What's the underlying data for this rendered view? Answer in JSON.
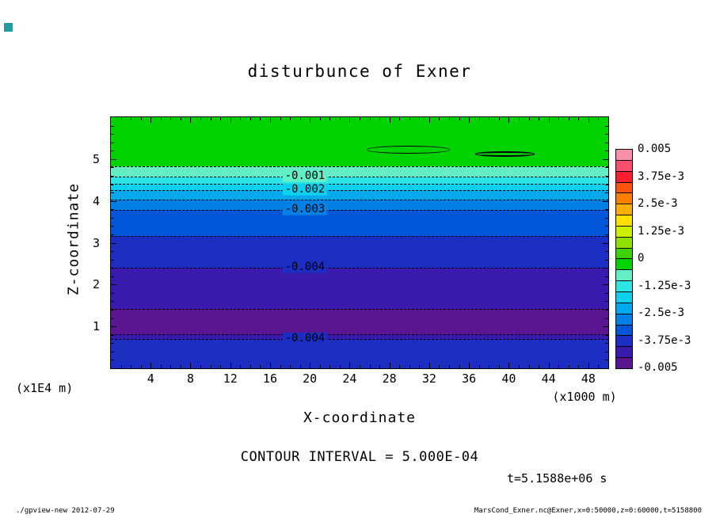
{
  "window": {
    "corner_marker_color": "#1f9ea0"
  },
  "title": "disturbunce of Exner",
  "axes": {
    "x_label": "X-coordinate",
    "x_unit_label": "(x1000 m)",
    "y_label": "Z-coordinate",
    "y_unit_label": "(x1E4 m)",
    "x_tick_labels": [
      4,
      8,
      12,
      16,
      20,
      24,
      28,
      32,
      36,
      40,
      44,
      48
    ],
    "y_tick_labels": [
      1,
      2,
      3,
      4,
      5
    ]
  },
  "colorbar": {
    "labels": [
      "0.005",
      "3.75e-3",
      "2.5e-3",
      "1.25e-3",
      "0",
      "-1.25e-3",
      "-2.5e-3",
      "-3.75e-3",
      "-0.005"
    ],
    "cell_colors_top_to_bottom": [
      "#f78fa7",
      "#f74f6f",
      "#ff1f2f",
      "#ff5410",
      "#ff7f00",
      "#ffaf00",
      "#ffdf00",
      "#cfef00",
      "#8fdf00",
      "#3fd200",
      "#00d200",
      "#63eec6",
      "#2ce4e4",
      "#0cd0ee",
      "#00a8ee",
      "#0080e4",
      "#0056d6",
      "#1c2ec2",
      "#3a1aac",
      "#5c1590"
    ]
  },
  "annotations": {
    "contour_interval": "CONTOUR INTERVAL = 5.000E-04",
    "time_label": "t=5.1588e+06 s"
  },
  "footer": {
    "left": "./gpview-new  2012-07-29",
    "right": "MarsCond_Exner.nc@Exner,x=0:50000,z=0:60000,t=5158800"
  },
  "chart_data": {
    "type": "heatmap",
    "variant": "filled_contour",
    "title": "disturbunce of Exner",
    "xlabel": "X-coordinate",
    "xunit": "x1000 m",
    "ylabel": "Z-coordinate",
    "yunit": "x1E4 m",
    "xlim": [
      0,
      50
    ],
    "ylim": [
      0,
      6
    ],
    "contour_interval": 0.0005,
    "value_range": [
      -0.005,
      0.0005
    ],
    "colorbar_levels": [
      0.005,
      0.00375,
      0.0025,
      0.00125,
      0,
      -0.00125,
      -0.0025,
      -0.00375,
      -0.005
    ],
    "bands": [
      {
        "z_top": 6.0,
        "z_bottom": 4.83,
        "value_min": -0.0005,
        "value_max": 0.0,
        "color": "#00d200"
      },
      {
        "z_top": 4.83,
        "z_bottom": 4.58,
        "value_min": -0.001,
        "value_max": -0.0005,
        "color": "#63eec6"
      },
      {
        "z_top": 4.58,
        "z_bottom": 4.41,
        "value_min": -0.0015,
        "value_max": -0.001,
        "color": "#2ce4e4"
      },
      {
        "z_top": 4.41,
        "z_bottom": 4.26,
        "value_min": -0.002,
        "value_max": -0.0015,
        "color": "#0cd0ee"
      },
      {
        "z_top": 4.26,
        "z_bottom": 4.03,
        "value_min": -0.0025,
        "value_max": -0.002,
        "color": "#00a8ee"
      },
      {
        "z_top": 4.03,
        "z_bottom": 3.79,
        "value_min": -0.003,
        "value_max": -0.0025,
        "color": "#0080e4"
      },
      {
        "z_top": 3.79,
        "z_bottom": 3.16,
        "value_min": -0.0035,
        "value_max": -0.003,
        "color": "#0056d6"
      },
      {
        "z_top": 3.16,
        "z_bottom": 2.4,
        "value_min": -0.004,
        "value_max": -0.0035,
        "color": "#1c2ec2"
      },
      {
        "z_top": 2.4,
        "z_bottom": 1.42,
        "value_min": -0.0045,
        "value_max": -0.004,
        "color": "#3a1aac"
      },
      {
        "z_top": 1.42,
        "z_bottom": 0.82,
        "value_min": -0.005,
        "value_max": -0.0045,
        "color": "#5c1590"
      },
      {
        "z_top": 0.82,
        "z_bottom": 0.7,
        "value_min": -0.0045,
        "value_max": -0.004,
        "color": "#3a1aac"
      },
      {
        "z_top": 0.7,
        "z_bottom": 0.0,
        "value_min": -0.004,
        "value_max": -0.0035,
        "color": "#1c2ec2"
      }
    ],
    "contours": [
      {
        "level": -0.0005,
        "z": 4.83,
        "label": ""
      },
      {
        "level": -0.001,
        "z": 4.58,
        "label": "-0.001",
        "label_bg": "#63eec6"
      },
      {
        "level": -0.0015,
        "z": 4.41,
        "label": ""
      },
      {
        "level": -0.002,
        "z": 4.26,
        "label": "-0.002",
        "label_bg": "#0cd0ee"
      },
      {
        "level": -0.0025,
        "z": 4.03,
        "label": ""
      },
      {
        "level": -0.003,
        "z": 3.79,
        "label": "-0.003",
        "label_bg": "#0080e4"
      },
      {
        "level": -0.0035,
        "z": 3.16,
        "label": ""
      },
      {
        "level": -0.004,
        "z": 2.4,
        "label": "-0.004",
        "label_bg": "#1c2ec2"
      },
      {
        "level": -0.0045,
        "z": 1.42,
        "label": ""
      },
      {
        "level": -0.0045,
        "z": 0.82,
        "label": ""
      },
      {
        "level": -0.004,
        "z": 0.7,
        "label": "-0.004",
        "label_bg": "#1c2ec2"
      }
    ],
    "closed_contours": [
      {
        "x_center": 29.9,
        "z_center": 5.22,
        "x_width": 8.4,
        "z_height": 0.18,
        "stroke_px": 1.5
      },
      {
        "x_center": 39.6,
        "z_center": 5.12,
        "x_width": 6.0,
        "z_height": 0.12,
        "stroke_px": 2.5
      }
    ]
  }
}
